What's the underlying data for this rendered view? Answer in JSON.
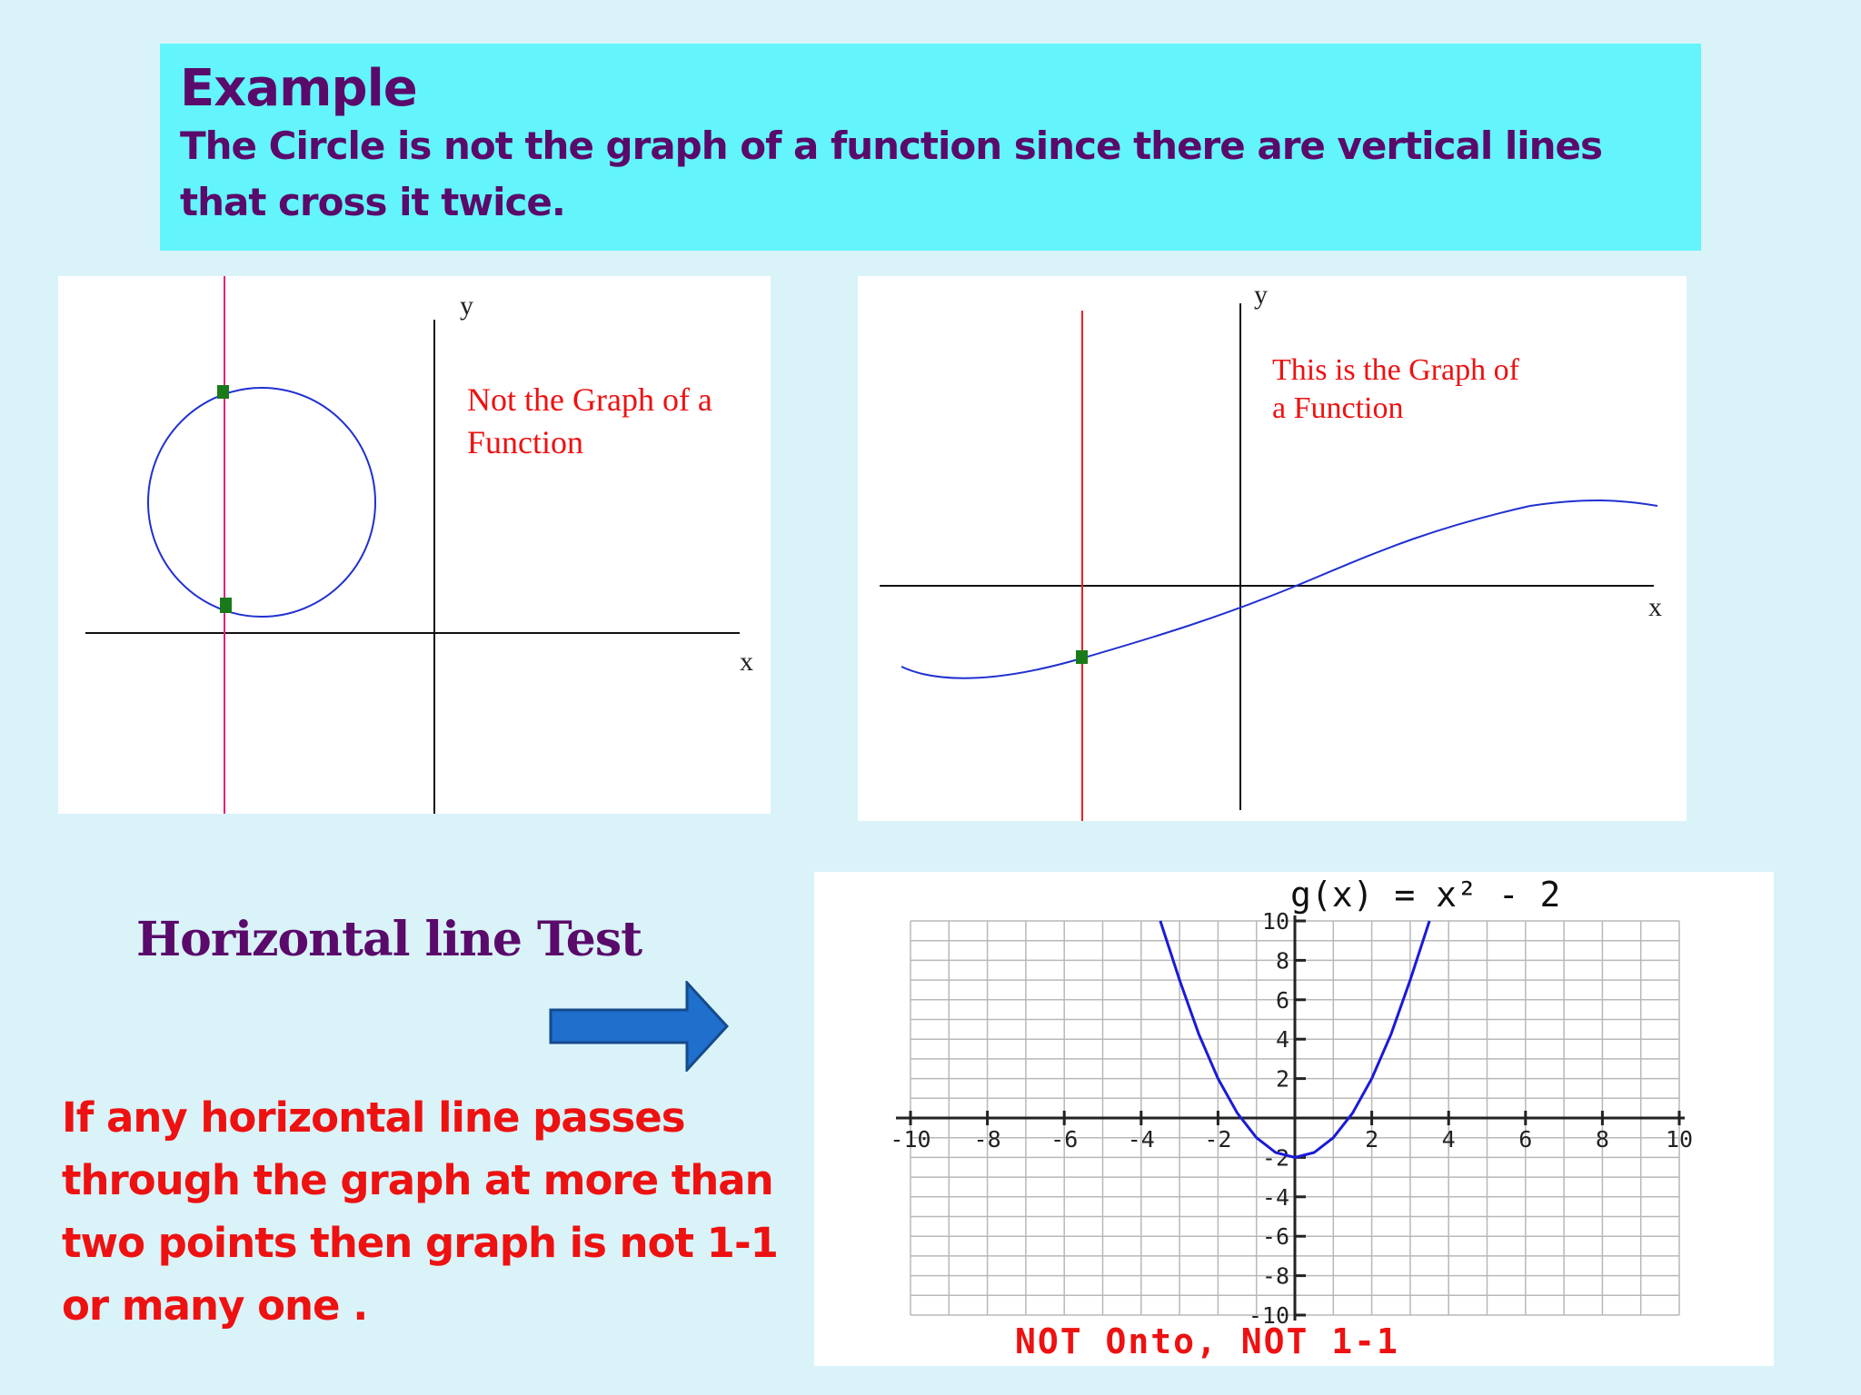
{
  "title": {
    "heading": "Example",
    "body": "The Circle is not the graph of a function since there are vertical lines that cross it twice."
  },
  "graph_circle": {
    "x_label": "x",
    "y_label": "y",
    "caption_line1": "Not the Graph of a",
    "caption_line2": "Function"
  },
  "graph_function": {
    "x_label": "x",
    "y_label": "y",
    "caption_line1": "This is the Graph of",
    "caption_line2": "a Function"
  },
  "horizontal_test": {
    "heading": "Horizontal line Test",
    "rule": "If any horizontal line passes through the graph at more than two points then graph is not 1-1 or many one ."
  },
  "chart_data": {
    "type": "line",
    "title": "g(x) = x² - 2",
    "caption": "NOT Onto, NOT 1-1",
    "xlim": [
      -10,
      10
    ],
    "ylim": [
      -10,
      10
    ],
    "x_ticks": [
      "-10",
      "-8",
      "-6",
      "-4",
      "-2",
      "2",
      "4",
      "6",
      "8",
      "10"
    ],
    "y_ticks": [
      "10",
      "8",
      "6",
      "4",
      "2",
      "-2",
      "-4",
      "-6",
      "-8",
      "-10"
    ],
    "grid": true,
    "series": [
      {
        "x": [
          -3.5,
          -3,
          -2.5,
          -2,
          -1.5,
          -1,
          -0.5,
          0,
          0.5,
          1,
          1.5,
          2,
          2.5,
          3,
          3.5
        ],
        "y": [
          10.25,
          7,
          4.25,
          2,
          0.25,
          -1,
          -1.75,
          -2,
          -1.75,
          -1,
          0.25,
          2,
          4.25,
          7,
          10.25
        ]
      }
    ],
    "colors": {
      "curve": "#1a1ad8",
      "axes": "#222222",
      "grid": "#b8b8b8",
      "caption": "#ee1111"
    }
  }
}
